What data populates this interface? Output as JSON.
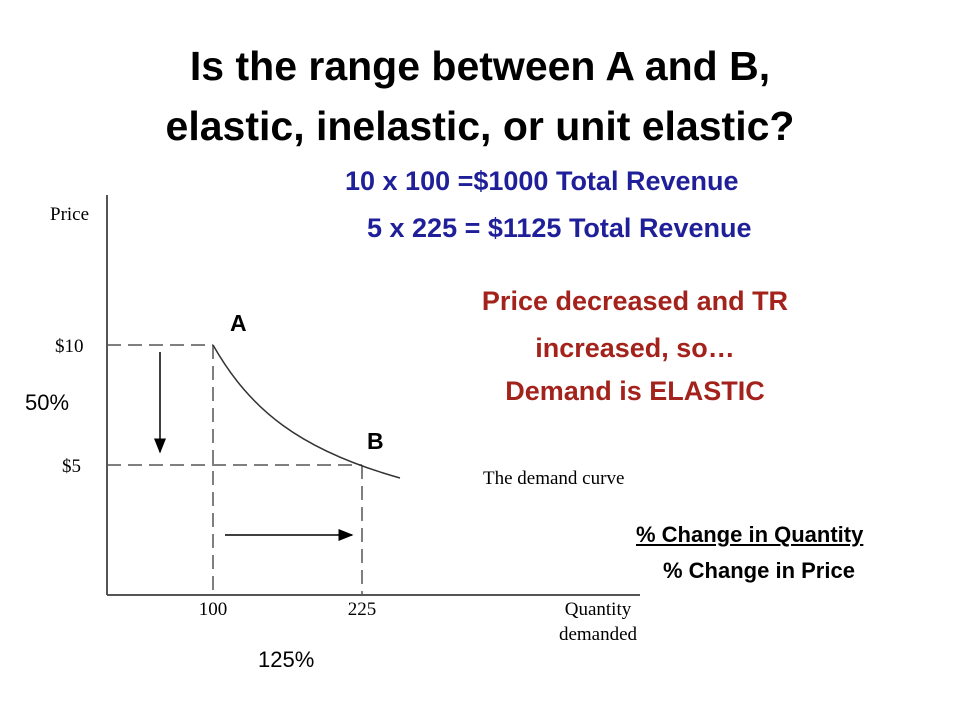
{
  "title": {
    "line1": "Is the range between A and B,",
    "line2": "elastic, inelastic, or unit elastic?"
  },
  "revenue": {
    "line1": "10 x 100 =$1000 Total Revenue",
    "line2": "5 x 225 = $1125 Total Revenue"
  },
  "conclusion": {
    "line1": "Price decreased and TR",
    "line2": "increased, so…",
    "line3": "Demand is ELASTIC"
  },
  "diagram": {
    "y_axis_label": "Price",
    "x_axis_label_line1": "Quantity",
    "x_axis_label_line2": "demanded",
    "price_high": "$10",
    "price_low": "$5",
    "quantity_low": "100",
    "quantity_high": "225",
    "curve_label": "The demand curve",
    "point_a": "A",
    "point_b": "B",
    "price_change": "50%",
    "quantity_change": "125%"
  },
  "formula": {
    "numerator": "% Change in Quantity",
    "denominator": "% Change in Price"
  }
}
